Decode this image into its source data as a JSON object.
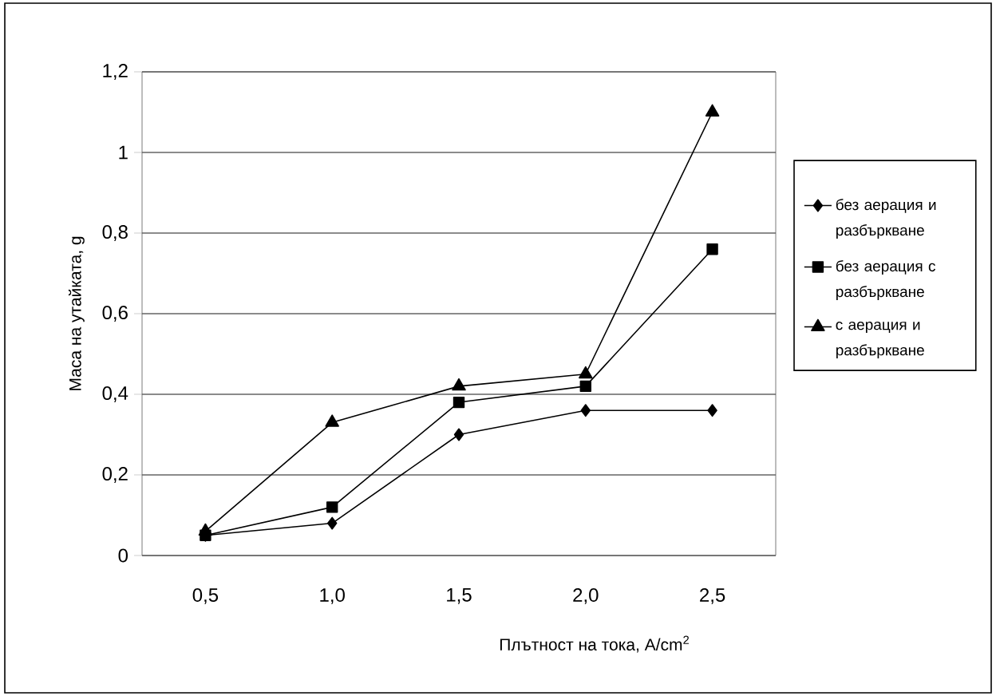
{
  "chart_data": {
    "type": "line",
    "xlabel": "Плътност на тока, A/cm$^{2}$",
    "ylabel": "Маса на утайката, g",
    "categories": [
      "0,5",
      "1,0",
      "1,5",
      "2,0",
      "2,5"
    ],
    "ylim": [
      0,
      1.2
    ],
    "yticks": [
      0,
      {
        "value": 0.2,
        "label": "0,2"
      },
      {
        "value": 0.4,
        "label": "0,4"
      },
      {
        "value": 0.6,
        "label": "0,6"
      },
      {
        "value": 0.8,
        "label": "0,8"
      },
      1,
      {
        "value": 1.2,
        "label": "1,2"
      }
    ],
    "grid": "y",
    "legend": "right",
    "series": [
      {
        "name": "без аерация и разбъркване",
        "color": "#000000",
        "marker": "diamond",
        "values": [
          0.05,
          0.08,
          0.3,
          0.36,
          0.36
        ]
      },
      {
        "name": "без аерация с разбъркване",
        "color": "#000000",
        "marker": "square",
        "values": [
          0.05,
          0.12,
          0.38,
          0.42,
          0.76
        ]
      },
      {
        "name": "с аерация и разбъркване",
        "color": "#000000",
        "marker": "triangle",
        "values": [
          0.06,
          0.33,
          0.42,
          0.45,
          1.1
        ]
      }
    ]
  }
}
